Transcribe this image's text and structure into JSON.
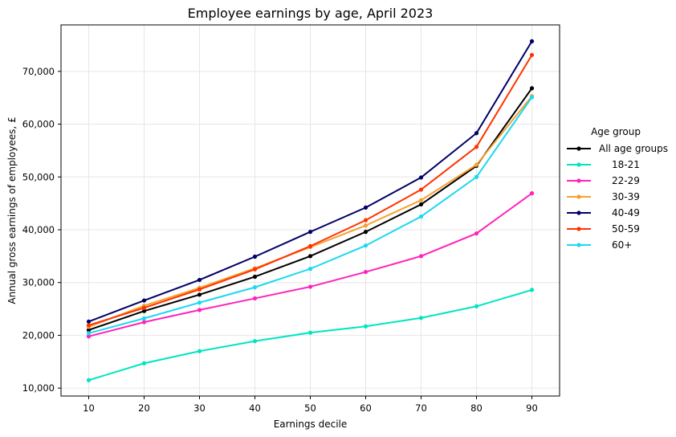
{
  "chart_data": {
    "type": "line",
    "title": "Employee earnings by age, April 2023",
    "xlabel": "Earnings decile",
    "ylabel": "Annual gross earnings of employees, £",
    "x": [
      10,
      20,
      30,
      40,
      50,
      60,
      70,
      80,
      90
    ],
    "x_ticks": [
      "10",
      "20",
      "30",
      "40",
      "50",
      "60",
      "70",
      "80",
      "90"
    ],
    "xlim": [
      5,
      95
    ],
    "ylim": [
      8500,
      78800
    ],
    "y_ticks": [
      {
        "value": 10000,
        "label": "10,000"
      },
      {
        "value": 20000,
        "label": "20,000"
      },
      {
        "value": 30000,
        "label": "30,000"
      },
      {
        "value": 40000,
        "label": "40,000"
      },
      {
        "value": 50000,
        "label": "50,000"
      },
      {
        "value": 60000,
        "label": "60,000"
      },
      {
        "value": 70000,
        "label": "70,000"
      }
    ],
    "grid": true,
    "legend": {
      "title": "Age group",
      "placement": "right"
    },
    "series": [
      {
        "name": "All age groups",
        "color": "#000000",
        "values": [
          21000,
          24600,
          27700,
          31100,
          35000,
          39600,
          44800,
          52100,
          66800
        ]
      },
      {
        "name": "18-21",
        "color": "#00e5c0",
        "values": [
          11500,
          14700,
          17000,
          18900,
          20500,
          21700,
          23300,
          25500,
          28600
        ]
      },
      {
        "name": "22-29",
        "color": "#ff22bb",
        "values": [
          19800,
          22500,
          24800,
          27000,
          29200,
          32000,
          35000,
          39300,
          46900
        ]
      },
      {
        "name": "30-39",
        "color": "#f5a030",
        "values": [
          21600,
          25600,
          29000,
          32700,
          36700,
          40800,
          45600,
          52300,
          65300
        ]
      },
      {
        "name": "40-49",
        "color": "#000066",
        "values": [
          22600,
          26600,
          30500,
          34900,
          39600,
          44200,
          49900,
          58300,
          75700
        ]
      },
      {
        "name": "50-59",
        "color": "#ff3300",
        "values": [
          21900,
          25200,
          28700,
          32500,
          36900,
          41800,
          47600,
          55700,
          73100
        ]
      },
      {
        "name": "60+",
        "color": "#1ad8f0",
        "values": [
          20400,
          23200,
          26200,
          29100,
          32600,
          37000,
          42500,
          50000,
          65100
        ]
      }
    ]
  }
}
